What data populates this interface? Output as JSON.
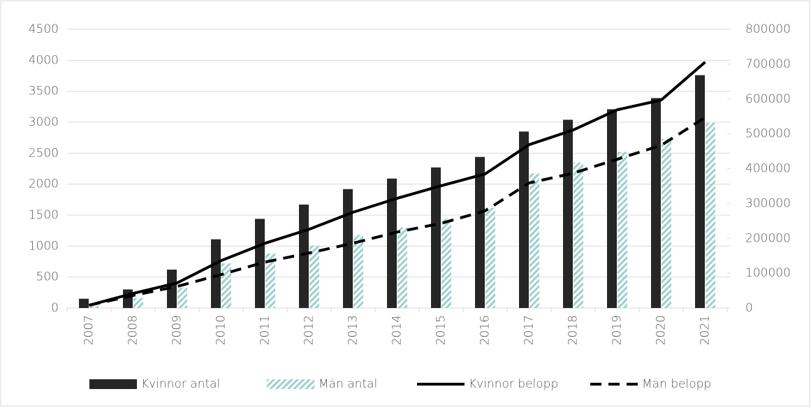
{
  "chart_data": {
    "type": "bar",
    "categories": [
      "2007",
      "2008",
      "2009",
      "2010",
      "2011",
      "2012",
      "2013",
      "2014",
      "2015",
      "2016",
      "2017",
      "2018",
      "2019",
      "2020",
      "2021"
    ],
    "series": [
      {
        "name": "Kvinnor antal",
        "type": "bar",
        "color": "#262626",
        "values": [
          150,
          300,
          620,
          1110,
          1440,
          1670,
          1920,
          2090,
          2270,
          2440,
          2850,
          3040,
          3210,
          3390,
          3760
        ]
      },
      {
        "name": "Män antal",
        "type": "bar",
        "color": "#9fcfcc",
        "hatch": true,
        "values": [
          30,
          160,
          330,
          720,
          880,
          1010,
          1180,
          1300,
          1440,
          1620,
          2170,
          2350,
          2520,
          2730,
          2990
        ]
      },
      {
        "name": "Kvinnor belopp",
        "type": "line",
        "axis": "y2",
        "color": "#000000",
        "values": [
          8000,
          42000,
          72000,
          136000,
          186000,
          226000,
          275000,
          315000,
          351000,
          385000,
          469000,
          511000,
          569000,
          597000,
          706000
        ]
      },
      {
        "name": "Män belopp",
        "type": "line",
        "axis": "y2",
        "color": "#000000",
        "dashed": true,
        "values": [
          8000,
          36000,
          62000,
          96000,
          132000,
          158000,
          186000,
          218000,
          243000,
          279000,
          359000,
          387000,
          427000,
          467000,
          547000
        ]
      }
    ],
    "ylim": [
      0,
      4500
    ],
    "yticks": [
      0,
      500,
      1000,
      1500,
      2000,
      2500,
      3000,
      3500,
      4000,
      4500
    ],
    "y2lim": [
      0,
      800000
    ],
    "y2ticks": [
      0,
      100000,
      200000,
      300000,
      400000,
      500000,
      600000,
      700000,
      800000
    ],
    "grid": true,
    "legend": "bottom"
  }
}
